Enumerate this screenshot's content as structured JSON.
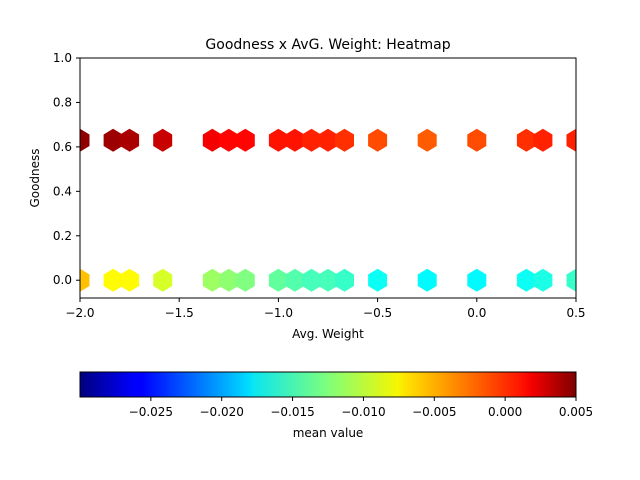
{
  "chart_data": {
    "type": "heatmap",
    "subtype": "hexbin",
    "title": "Goodness x AvG. Weight: Heatmap",
    "xlabel": "Avg. Weight",
    "ylabel": "Goodness",
    "xlim": [
      -2.0,
      0.5
    ],
    "ylim": [
      -0.08,
      1.0
    ],
    "xticks": [
      -2.0,
      -1.5,
      -1.0,
      -0.5,
      0.0,
      0.5
    ],
    "xtick_labels": [
      "−2.0",
      "−1.5",
      "−1.0",
      "−0.5",
      "0.0",
      "0.5"
    ],
    "yticks": [
      0.0,
      0.2,
      0.4,
      0.6,
      0.8,
      1.0
    ],
    "ytick_labels": [
      "0.0",
      "0.2",
      "0.4",
      "0.6",
      "0.8",
      "1.0"
    ],
    "colormap": "jet",
    "colorbar": {
      "label": "mean value",
      "range": [
        -0.03,
        0.005
      ],
      "ticks": [
        -0.025,
        -0.02,
        -0.015,
        -0.01,
        -0.005,
        0.0,
        0.005
      ],
      "tick_labels": [
        "−0.025",
        "−0.020",
        "−0.015",
        "−0.010",
        "−0.005",
        "0.000",
        "0.005"
      ],
      "orientation": "horizontal"
    },
    "bins": [
      {
        "x": -2.0,
        "y": 0.63,
        "value": 0.0045
      },
      {
        "x": -1.833,
        "y": 0.63,
        "value": 0.004
      },
      {
        "x": -1.75,
        "y": 0.63,
        "value": 0.0035
      },
      {
        "x": -1.583,
        "y": 0.63,
        "value": 0.0025
      },
      {
        "x": -1.333,
        "y": 0.63,
        "value": 0.001
      },
      {
        "x": -1.25,
        "y": 0.63,
        "value": 0.0005
      },
      {
        "x": -1.167,
        "y": 0.63,
        "value": 0.0005
      },
      {
        "x": -1.0,
        "y": 0.63,
        "value": 0.0
      },
      {
        "x": -0.917,
        "y": 0.63,
        "value": 0.0
      },
      {
        "x": -0.833,
        "y": 0.63,
        "value": -0.0005
      },
      {
        "x": -0.75,
        "y": 0.63,
        "value": -0.0005
      },
      {
        "x": -0.667,
        "y": 0.63,
        "value": -0.001
      },
      {
        "x": -0.5,
        "y": 0.63,
        "value": -0.002
      },
      {
        "x": -0.25,
        "y": 0.63,
        "value": -0.0025
      },
      {
        "x": 0.0,
        "y": 0.63,
        "value": -0.002
      },
      {
        "x": 0.25,
        "y": 0.63,
        "value": -0.001
      },
      {
        "x": 0.333,
        "y": 0.63,
        "value": -0.0005
      },
      {
        "x": 0.5,
        "y": 0.63,
        "value": -0.0005
      },
      {
        "x": -2.0,
        "y": 0.0,
        "value": -0.006
      },
      {
        "x": -1.833,
        "y": 0.0,
        "value": -0.008
      },
      {
        "x": -1.75,
        "y": 0.0,
        "value": -0.008
      },
      {
        "x": -1.583,
        "y": 0.0,
        "value": -0.0095
      },
      {
        "x": -1.333,
        "y": 0.0,
        "value": -0.0115
      },
      {
        "x": -1.25,
        "y": 0.0,
        "value": -0.012
      },
      {
        "x": -1.167,
        "y": 0.0,
        "value": -0.0125
      },
      {
        "x": -1.0,
        "y": 0.0,
        "value": -0.0135
      },
      {
        "x": -0.917,
        "y": 0.0,
        "value": -0.014
      },
      {
        "x": -0.833,
        "y": 0.0,
        "value": -0.0145
      },
      {
        "x": -0.75,
        "y": 0.0,
        "value": -0.0145
      },
      {
        "x": -0.667,
        "y": 0.0,
        "value": -0.015
      },
      {
        "x": -0.5,
        "y": 0.0,
        "value": -0.0165
      },
      {
        "x": -0.25,
        "y": 0.0,
        "value": -0.017
      },
      {
        "x": 0.0,
        "y": 0.0,
        "value": -0.017
      },
      {
        "x": 0.25,
        "y": 0.0,
        "value": -0.0165
      },
      {
        "x": 0.333,
        "y": 0.0,
        "value": -0.016
      },
      {
        "x": 0.5,
        "y": 0.0,
        "value": -0.015
      }
    ]
  }
}
